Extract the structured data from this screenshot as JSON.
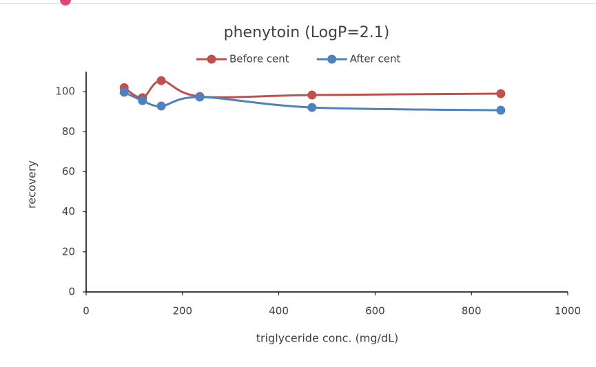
{
  "chart_data": {
    "type": "line",
    "title": "phenytoin (LogP=2.1)",
    "x_label": "triglyceride conc. (mg/dL)",
    "y_label": "recovery",
    "x": [
      79,
      117,
      156,
      236,
      469,
      861
    ],
    "series": [
      {
        "name": "Before cent",
        "color": "#c0504d",
        "values": [
          102,
          97,
          105.5,
          97.6,
          98.3,
          99
        ]
      },
      {
        "name": "After cent",
        "color": "#4f81bd",
        "values": [
          99.7,
          95.5,
          92.8,
          97.3,
          92.1,
          90.7
        ]
      }
    ],
    "xlim": [
      0,
      1000
    ],
    "xticks": [
      0,
      200,
      400,
      600,
      800,
      1000
    ],
    "ylim": [
      0,
      110
    ],
    "yticks": [
      0,
      20,
      40,
      60,
      80,
      100
    ],
    "smooth": true,
    "legend": "top"
  }
}
